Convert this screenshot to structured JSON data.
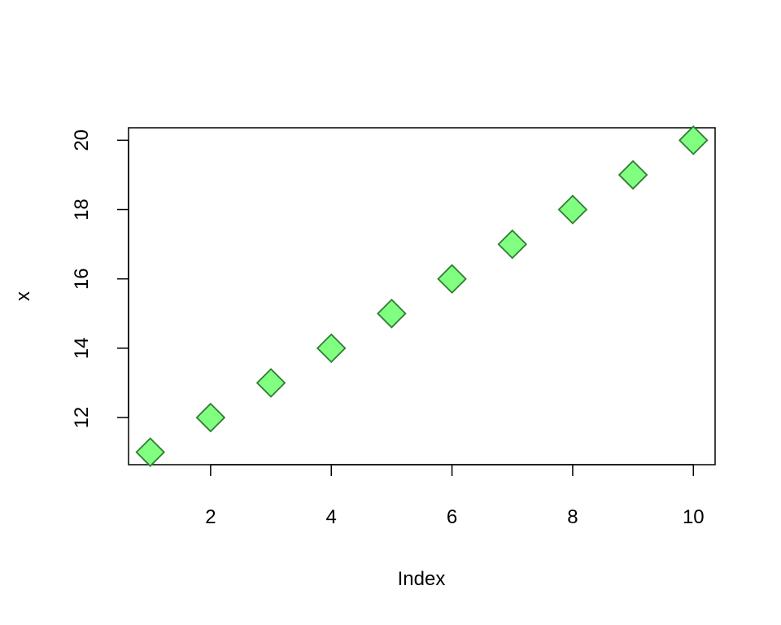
{
  "chart_data": {
    "type": "scatter",
    "title": "",
    "xlabel": "Index",
    "ylabel": "x",
    "x": [
      1,
      2,
      3,
      4,
      5,
      6,
      7,
      8,
      9,
      10
    ],
    "y": [
      11,
      12,
      13,
      14,
      15,
      16,
      17,
      18,
      19,
      20
    ],
    "xlim": [
      0.64,
      10.36
    ],
    "ylim": [
      10.64,
      20.36
    ],
    "xticks": [
      2,
      4,
      6,
      8,
      10
    ],
    "yticks": [
      12,
      14,
      16,
      18,
      20
    ],
    "marker": "diamond",
    "marker_fill": "#80ff80",
    "marker_edge": "#2e7d32",
    "grid": false,
    "legend": "none"
  }
}
